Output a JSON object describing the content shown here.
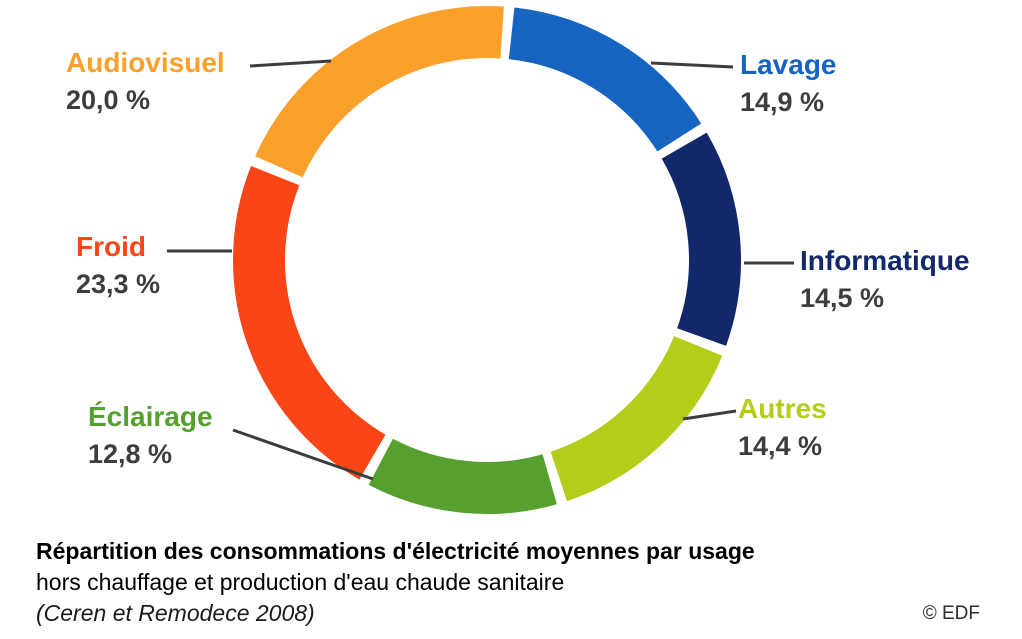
{
  "chart_data": {
    "type": "pie",
    "subtype": "donut",
    "title": "Répartition des consommations d'électricité moyennes par usage",
    "subtitle": "hors chauffage et production d'eau chaude sanitaire",
    "source": "(Ceren et Remodece 2008)",
    "credit": "© EDF",
    "unit": "%",
    "legend_position": "around",
    "segments": [
      {
        "label": "Lavage",
        "value": 14.9,
        "display": "14,9 %",
        "color": "#1565c0"
      },
      {
        "label": "Informatique",
        "value": 14.5,
        "display": "14,5 %",
        "color": "#12286b"
      },
      {
        "label": "Autres",
        "value": 14.4,
        "display": "14,4 %",
        "color": "#b5cc18"
      },
      {
        "label": "Éclairage",
        "value": 12.8,
        "display": "12,8 %",
        "color": "#55a02e"
      },
      {
        "label": "Froid",
        "value": 23.3,
        "display": "23,3 %",
        "color": "#fa4616"
      },
      {
        "label": "Audiovisuel",
        "value": 20.0,
        "display": "20,0 %",
        "color": "#fba12b"
      }
    ]
  }
}
